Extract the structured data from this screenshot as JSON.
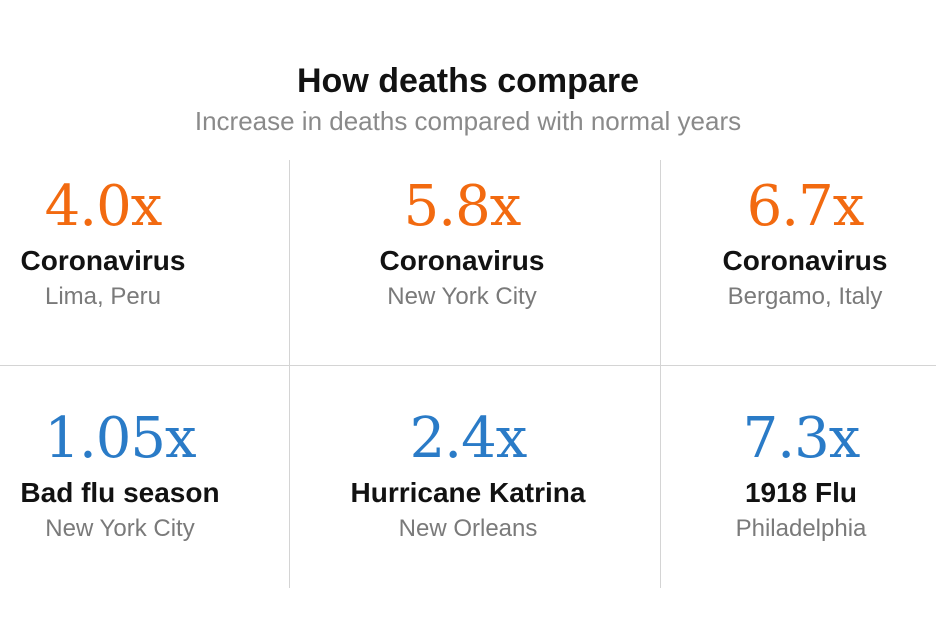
{
  "header": {
    "title": "How deaths compare",
    "subtitle": "Increase in deaths compared with normal years"
  },
  "cards": [
    {
      "value": "4.0x",
      "label": "Coronavirus",
      "place": "Lima, Peru",
      "color": "#f26a10"
    },
    {
      "value": "5.8x",
      "label": "Coronavirus",
      "place": "New York City",
      "color": "#f26a10"
    },
    {
      "value": "6.7x",
      "label": "Coronavirus",
      "place": "Bergamo, Italy",
      "color": "#f26a10"
    },
    {
      "value": "1.05x",
      "label": "Bad flu season",
      "place": "New York City",
      "color": "#2a7bc7"
    },
    {
      "value": "2.4x",
      "label": "Hurricane Katrina",
      "place": "New Orleans",
      "color": "#2a7bc7"
    },
    {
      "value": "7.3x",
      "label": "1918 Flu",
      "place": "Philadelphia",
      "color": "#2a7bc7"
    }
  ]
}
